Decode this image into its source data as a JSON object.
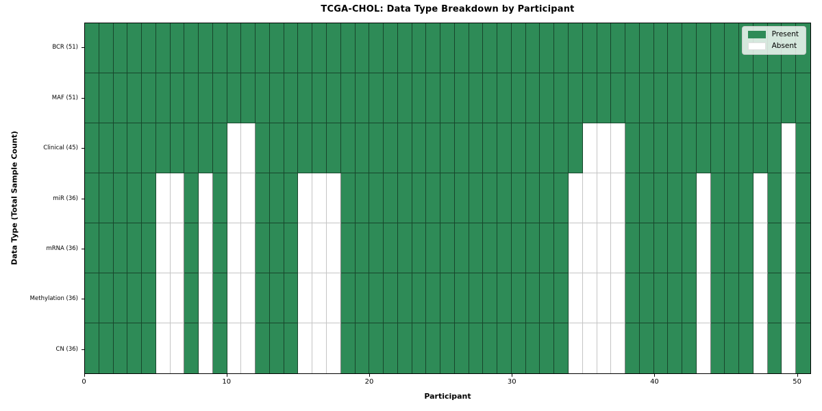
{
  "figure": {
    "background_color": "#ffffff"
  },
  "chart_data": {
    "type": "heatmap",
    "title": "TCGA-CHOL: Data Type Breakdown by Participant",
    "xlabel": "Participant",
    "ylabel": "Data Type (Total Sample Count)",
    "n_participants": 51,
    "x_range": [
      0,
      51
    ],
    "x_ticks": [
      0,
      10,
      20,
      30,
      40,
      50
    ],
    "grid": true,
    "colors": {
      "present": "#2e8b57",
      "absent": "#ffffff"
    },
    "legend": {
      "position": "upper right",
      "entries": [
        {
          "label": "Present",
          "color": "#2e8b57"
        },
        {
          "label": "Absent",
          "color": "#ffffff"
        }
      ]
    },
    "rows": [
      {
        "label": "BCR (51)",
        "data_type": "BCR",
        "total_samples": 51,
        "absent_participants": []
      },
      {
        "label": "MAF (51)",
        "data_type": "MAF",
        "total_samples": 51,
        "absent_participants": []
      },
      {
        "label": "Clinical (45)",
        "data_type": "Clinical",
        "total_samples": 45,
        "absent_participants": [
          10,
          11,
          35,
          36,
          37,
          49
        ]
      },
      {
        "label": "miR (36)",
        "data_type": "miR",
        "total_samples": 36,
        "absent_participants": [
          5,
          6,
          8,
          10,
          11,
          15,
          16,
          17,
          34,
          35,
          36,
          37,
          43,
          47,
          49
        ]
      },
      {
        "label": "mRNA (36)",
        "data_type": "mRNA",
        "total_samples": 36,
        "absent_participants": [
          5,
          6,
          8,
          10,
          11,
          15,
          16,
          17,
          34,
          35,
          36,
          37,
          43,
          47,
          49
        ]
      },
      {
        "label": "Methylation (36)",
        "data_type": "Methylation",
        "total_samples": 36,
        "absent_participants": [
          5,
          6,
          8,
          10,
          11,
          15,
          16,
          17,
          34,
          35,
          36,
          37,
          43,
          47,
          49
        ]
      },
      {
        "label": "CN (36)",
        "data_type": "CN",
        "total_samples": 36,
        "absent_participants": [
          5,
          6,
          8,
          10,
          11,
          15,
          16,
          17,
          34,
          35,
          36,
          37,
          43,
          47,
          49
        ]
      }
    ]
  }
}
